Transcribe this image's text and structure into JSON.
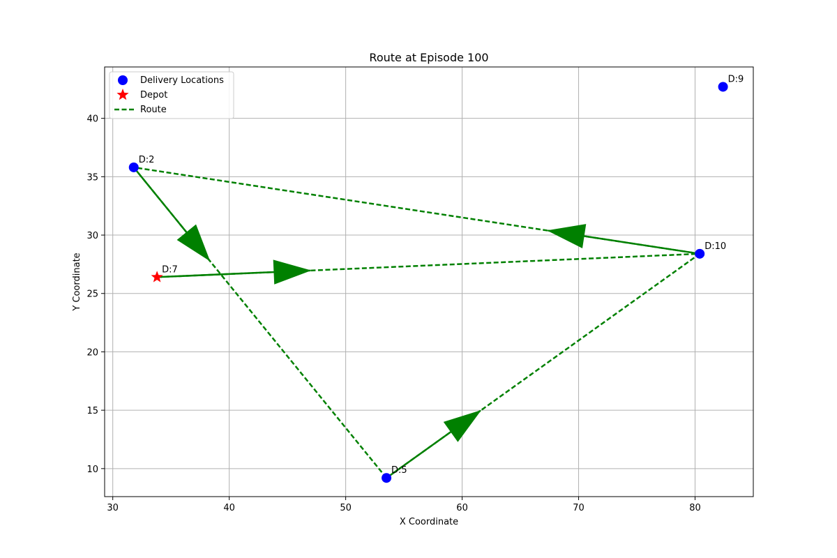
{
  "chart_data": {
    "type": "scatter",
    "title": "Route at Episode 100",
    "xlabel": "X Coordinate",
    "ylabel": "Y Coordinate",
    "xlim": [
      29.3,
      85.0
    ],
    "ylim": [
      7.6,
      44.4
    ],
    "xticks": [
      30,
      40,
      50,
      60,
      70,
      80
    ],
    "yticks": [
      10,
      15,
      20,
      25,
      30,
      35,
      40
    ],
    "grid": true,
    "legend": {
      "position": "top-left",
      "entries": [
        {
          "label": "Delivery Locations",
          "marker": "circle",
          "color": "#0000ff"
        },
        {
          "label": "Depot",
          "marker": "star",
          "color": "#ff0000"
        },
        {
          "label": "Route",
          "marker": "dashed-line",
          "color": "#008000"
        }
      ]
    },
    "delivery_locations": [
      {
        "label": "D:2",
        "x": 31.8,
        "y": 35.8
      },
      {
        "label": "D:5",
        "x": 53.5,
        "y": 9.2
      },
      {
        "label": "D:10",
        "x": 80.4,
        "y": 28.4
      },
      {
        "label": "D:9",
        "x": 82.4,
        "y": 42.7
      }
    ],
    "depot": {
      "label": "D:7",
      "x": 33.8,
      "y": 26.4
    },
    "route": [
      {
        "x": 33.8,
        "y": 26.4
      },
      {
        "x": 80.4,
        "y": 28.4
      },
      {
        "x": 31.8,
        "y": 35.8
      },
      {
        "x": 53.5,
        "y": 9.2
      },
      {
        "x": 80.4,
        "y": 28.4
      }
    ],
    "colors": {
      "delivery": "#0000ff",
      "depot": "#ff0000",
      "route": "#008000",
      "grid": "#b0b0b0"
    }
  }
}
